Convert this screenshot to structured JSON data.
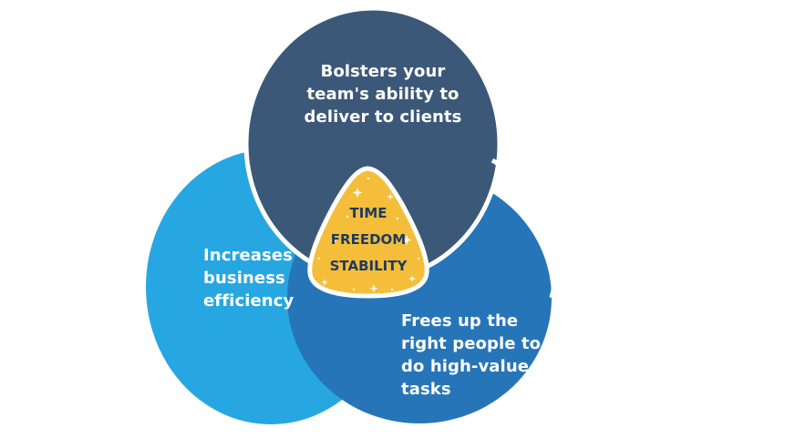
{
  "diagram": {
    "top_circle": {
      "lines": [
        "Bolsters your",
        "team's ability to",
        "deliver to clients"
      ],
      "color": "#3b5878"
    },
    "left_circle": {
      "lines": [
        "Increases",
        "business",
        "efficiency"
      ],
      "color": "#27a7e1"
    },
    "right_circle": {
      "lines": [
        "Frees up the",
        "right people to",
        "do high-value",
        "tasks"
      ],
      "color": "#2775b9"
    },
    "center": {
      "lines": [
        "TIME",
        "FREEDOM",
        "STABILITY"
      ],
      "fill_color": "#f4be3a",
      "text_color": "#1e3a5f"
    }
  }
}
